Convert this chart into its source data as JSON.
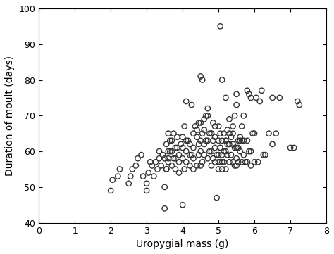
{
  "x": [
    2.0,
    2.05,
    2.2,
    2.25,
    2.5,
    2.55,
    2.6,
    2.7,
    2.75,
    2.85,
    2.9,
    3.0,
    3.0,
    3.05,
    3.1,
    3.15,
    3.2,
    3.25,
    3.3,
    3.35,
    3.35,
    3.4,
    3.45,
    3.5,
    3.5,
    3.55,
    3.6,
    3.6,
    3.65,
    3.7,
    3.7,
    3.75,
    3.8,
    3.8,
    3.85,
    3.9,
    3.9,
    3.95,
    4.0,
    4.0,
    4.0,
    4.05,
    4.05,
    4.1,
    4.1,
    4.1,
    4.15,
    4.2,
    4.2,
    4.25,
    4.25,
    4.3,
    4.3,
    4.3,
    4.35,
    4.4,
    4.4,
    4.45,
    4.45,
    4.5,
    4.5,
    4.5,
    4.55,
    4.55,
    4.6,
    4.6,
    4.6,
    4.65,
    4.7,
    4.7,
    4.7,
    4.75,
    4.75,
    4.8,
    4.8,
    4.8,
    4.85,
    4.85,
    4.9,
    4.9,
    4.9,
    4.95,
    4.95,
    5.0,
    5.0,
    5.0,
    5.0,
    5.05,
    5.05,
    5.05,
    5.05,
    5.1,
    5.1,
    5.1,
    5.1,
    5.15,
    5.15,
    5.2,
    5.2,
    5.2,
    5.2,
    5.25,
    5.25,
    5.3,
    5.3,
    5.3,
    5.35,
    5.4,
    5.4,
    5.4,
    5.45,
    5.45,
    5.5,
    5.5,
    5.5,
    5.55,
    5.55,
    5.6,
    5.6,
    5.65,
    5.65,
    5.7,
    5.7,
    5.75,
    5.8,
    5.8,
    5.85,
    5.9,
    5.9,
    5.95,
    6.0,
    6.0,
    6.05,
    6.1,
    6.15,
    6.2,
    6.25,
    6.3,
    6.4,
    6.5,
    6.5,
    6.6,
    6.7,
    7.0,
    7.1,
    7.2,
    7.25,
    4.0,
    4.5,
    4.55,
    5.0,
    5.05,
    5.5,
    5.55,
    5.6,
    5.65,
    5.7,
    5.8,
    5.85,
    5.9,
    3.5,
    3.55,
    3.6,
    3.9,
    4.1,
    4.2,
    4.3,
    4.4,
    4.45,
    4.5,
    4.6,
    4.65,
    4.7,
    4.8,
    4.85,
    4.9,
    5.1,
    5.15,
    5.2,
    5.25,
    5.3,
    5.35,
    5.4,
    5.45,
    5.5,
    3.55,
    3.6,
    3.65,
    3.7,
    3.75,
    3.8,
    3.85
  ],
  "y": [
    49.0,
    52.0,
    53.0,
    55.0,
    51.0,
    53.0,
    55.0,
    56.0,
    58.0,
    59.0,
    53.0,
    49.0,
    51.0,
    54.0,
    57.0,
    56.0,
    53.0,
    57.0,
    55.0,
    58.0,
    60.0,
    56.0,
    59.0,
    44.0,
    50.0,
    55.0,
    57.0,
    60.0,
    63.0,
    56.0,
    60.0,
    65.0,
    55.0,
    58.0,
    61.0,
    54.0,
    57.0,
    62.0,
    45.0,
    58.0,
    64.0,
    55.0,
    67.0,
    57.0,
    60.0,
    74.0,
    63.0,
    56.0,
    62.0,
    59.0,
    73.0,
    55.0,
    58.0,
    65.0,
    67.0,
    56.0,
    66.0,
    59.0,
    62.0,
    56.0,
    60.0,
    68.0,
    57.0,
    65.0,
    59.0,
    62.0,
    69.0,
    63.0,
    58.0,
    63.0,
    70.0,
    60.0,
    65.0,
    56.0,
    60.0,
    65.0,
    58.0,
    63.0,
    57.0,
    61.0,
    64.0,
    59.0,
    47.0,
    55.0,
    59.0,
    63.0,
    67.0,
    57.0,
    61.0,
    65.0,
    95.0,
    55.0,
    59.0,
    63.0,
    80.0,
    57.0,
    65.0,
    55.0,
    60.0,
    63.0,
    75.0,
    59.0,
    62.0,
    57.0,
    62.0,
    65.0,
    59.0,
    57.0,
    62.0,
    65.0,
    56.0,
    61.0,
    56.0,
    61.0,
    76.0,
    57.0,
    63.0,
    60.0,
    63.0,
    57.0,
    63.0,
    59.0,
    63.0,
    57.0,
    57.0,
    63.0,
    60.0,
    56.0,
    60.0,
    65.0,
    57.0,
    65.0,
    75.0,
    57.0,
    74.0,
    77.0,
    59.0,
    59.0,
    65.0,
    75.0,
    62.0,
    65.0,
    75.0,
    61.0,
    61.0,
    74.0,
    73.0,
    61.0,
    81.0,
    80.0,
    57.0,
    61.0,
    58.0,
    61.0,
    64.0,
    67.0,
    70.0,
    77.0,
    76.0,
    75.0,
    58.0,
    55.0,
    58.0,
    59.0,
    63.0,
    59.0,
    61.0,
    64.0,
    68.0,
    63.0,
    66.0,
    70.0,
    72.0,
    65.0,
    68.0,
    67.0,
    57.0,
    60.0,
    63.0,
    66.0,
    69.0,
    64.0,
    67.0,
    70.0,
    73.0,
    62.0,
    65.0,
    60.0,
    63.0,
    58.0,
    61.0,
    64.0
  ],
  "xlim": [
    0,
    8
  ],
  "ylim": [
    40,
    100
  ],
  "xticks": [
    0,
    1,
    2,
    3,
    4,
    5,
    6,
    7,
    8
  ],
  "yticks": [
    40,
    50,
    60,
    70,
    80,
    90,
    100
  ],
  "xlabel": "Uropygial mass (g)",
  "ylabel": "Duration of moult (days)",
  "marker": "o",
  "marker_size": 28,
  "marker_facecolor": "none",
  "marker_edgecolor": "#333333",
  "marker_linewidth": 1.0,
  "background_color": "#ffffff",
  "figsize": [
    4.74,
    3.61
  ],
  "dpi": 100
}
